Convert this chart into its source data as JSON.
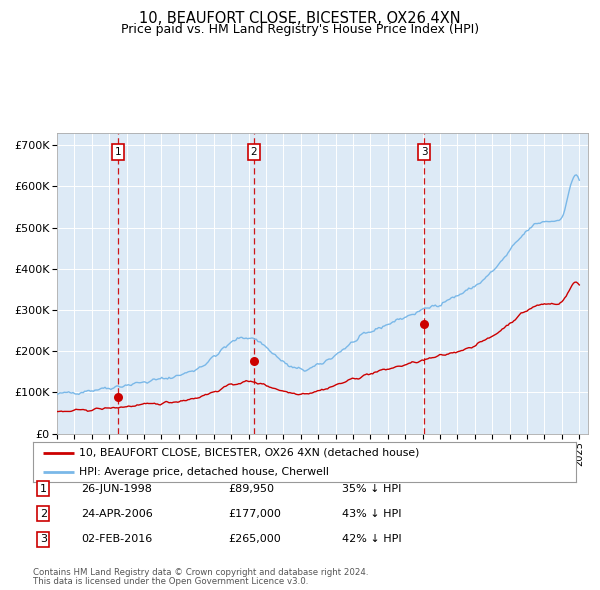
{
  "title": "10, BEAUFORT CLOSE, BICESTER, OX26 4XN",
  "subtitle": "Price paid vs. HM Land Registry's House Price Index (HPI)",
  "title_fontsize": 10.5,
  "subtitle_fontsize": 9,
  "bg_color": "#ddeaf6",
  "hpi_color": "#7ab8e8",
  "price_color": "#cc0000",
  "grid_color": "#ffffff",
  "dashed_color": "#cc0000",
  "ylim": [
    0,
    730000
  ],
  "yticks": [
    0,
    100000,
    200000,
    300000,
    400000,
    500000,
    600000,
    700000
  ],
  "ytick_labels": [
    "£0",
    "£100K",
    "£200K",
    "£300K",
    "£400K",
    "£500K",
    "£600K",
    "£700K"
  ],
  "year_start": 1995,
  "year_end": 2025,
  "sales": [
    {
      "label": "1",
      "date_num": 1998.49,
      "price": 89950,
      "date_str": "26-JUN-1998",
      "pct": "35% ↓ HPI"
    },
    {
      "label": "2",
      "date_num": 2006.31,
      "price": 177000,
      "date_str": "24-APR-2006",
      "pct": "43% ↓ HPI"
    },
    {
      "label": "3",
      "date_num": 2016.09,
      "price": 265000,
      "date_str": "02-FEB-2016",
      "pct": "42% ↓ HPI"
    }
  ],
  "legend_line1": "10, BEAUFORT CLOSE, BICESTER, OX26 4XN (detached house)",
  "legend_line2": "HPI: Average price, detached house, Cherwell",
  "table_rows": [
    [
      "1",
      "26-JUN-1998",
      "£89,950",
      "35% ↓ HPI"
    ],
    [
      "2",
      "24-APR-2006",
      "£177,000",
      "43% ↓ HPI"
    ],
    [
      "3",
      "02-FEB-2016",
      "£265,000",
      "42% ↓ HPI"
    ]
  ],
  "footer1": "Contains HM Land Registry data © Crown copyright and database right 2024.",
  "footer2": "This data is licensed under the Open Government Licence v3.0."
}
